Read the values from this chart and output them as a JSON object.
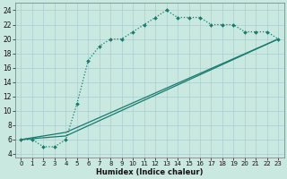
{
  "background_color": "#c8e8e0",
  "grid_color": "#aacfcf",
  "line_color": "#1a7a6e",
  "xlabel": "Humidex (Indice chaleur)",
  "xlim": [
    -0.5,
    23.5
  ],
  "ylim": [
    3.5,
    25
  ],
  "yticks": [
    4,
    6,
    8,
    10,
    12,
    14,
    16,
    18,
    20,
    22,
    24
  ],
  "xticks": [
    0,
    1,
    2,
    3,
    4,
    5,
    6,
    7,
    8,
    9,
    10,
    11,
    12,
    13,
    14,
    15,
    16,
    17,
    18,
    19,
    20,
    21,
    22,
    23
  ],
  "curve1_x": [
    0,
    1,
    2,
    3,
    4,
    5,
    6,
    7,
    8,
    9,
    10,
    11,
    12,
    13,
    14,
    15,
    16,
    17,
    18,
    19,
    20,
    21,
    22,
    23
  ],
  "curve1_y": [
    6,
    6,
    5,
    5,
    6,
    11,
    17,
    19,
    20,
    20,
    21,
    22,
    23,
    24,
    23,
    23,
    23,
    22,
    22,
    22,
    21,
    21,
    21,
    20
  ],
  "curve2_x": [
    0,
    4,
    23
  ],
  "curve2_y": [
    6,
    6.5,
    20
  ],
  "curve3_x": [
    0,
    4,
    23
  ],
  "curve3_y": [
    6,
    7,
    20
  ],
  "ylabel_fontsize": 5.5,
  "xlabel_fontsize": 6.0,
  "tick_fontsize": 5.0
}
